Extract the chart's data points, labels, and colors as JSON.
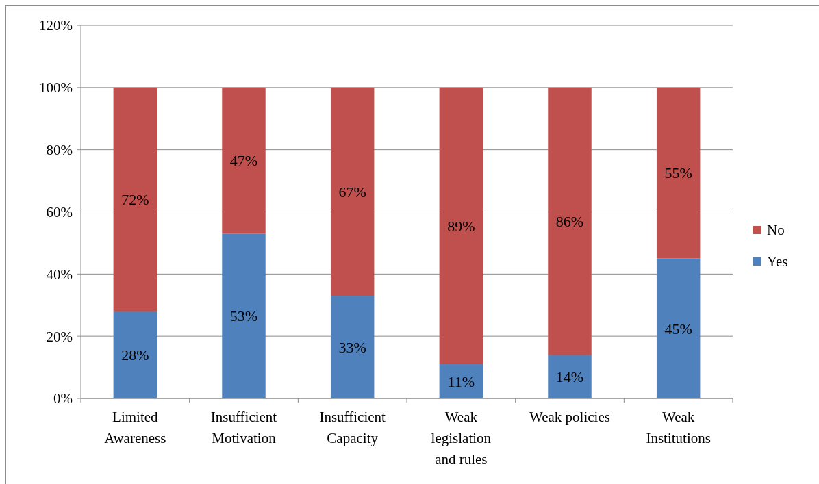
{
  "chart_data": {
    "type": "bar",
    "stacked": true,
    "categories": [
      "Limited Awareness",
      "Insufficient Motivation",
      "Insufficient Capacity",
      "Weak legislation and rules",
      "Weak policies",
      "Weak Institutions"
    ],
    "series": [
      {
        "name": "Yes",
        "color": "#4f81bd",
        "values": [
          28,
          53,
          33,
          11,
          14,
          45
        ],
        "value_labels": [
          "28%",
          "53%",
          "33%",
          "11%",
          "14%",
          "45%"
        ]
      },
      {
        "name": "No",
        "color": "#c0504d",
        "values": [
          72,
          47,
          67,
          89,
          86,
          55
        ],
        "value_labels": [
          "72%",
          "47%",
          "67%",
          "89%",
          "86%",
          "55%"
        ]
      }
    ],
    "ylim": [
      0,
      120
    ],
    "yticks": [
      {
        "value": 0,
        "label": "0%"
      },
      {
        "value": 20,
        "label": "20%"
      },
      {
        "value": 40,
        "label": "40%"
      },
      {
        "value": 60,
        "label": "60%"
      },
      {
        "value": 80,
        "label": "80%"
      },
      {
        "value": 100,
        "label": "100%"
      },
      {
        "value": 120,
        "label": "120%"
      }
    ],
    "grid": "y",
    "legend": "right"
  }
}
